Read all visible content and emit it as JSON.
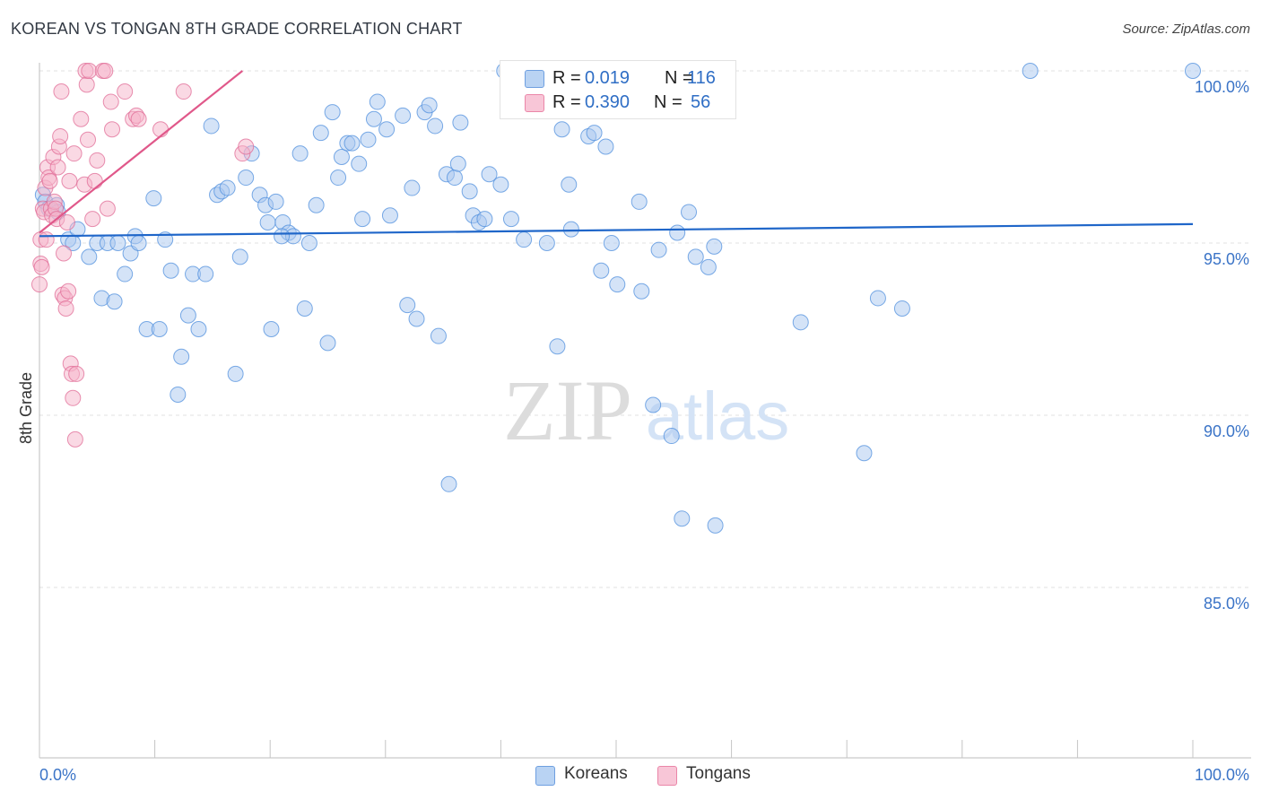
{
  "title": "KOREAN VS TONGAN 8TH GRADE CORRELATION CHART",
  "source": "Source: ZipAtlas.com",
  "watermark": {
    "zip": "ZIP",
    "atlas": "atlas"
  },
  "legend": {
    "rows": [
      {
        "r_label": "R =",
        "r_value": "0.019",
        "n_label": "N =",
        "n_value": "116",
        "color": "#a9c8f0"
      },
      {
        "r_label": "R =",
        "r_value": "0.390",
        "n_label": "N =",
        "n_value": "56",
        "color": "#f5b3c9"
      }
    ]
  },
  "bottom_legend": [
    {
      "label": "Koreans",
      "color": "#a9c8f0"
    },
    {
      "label": "Tongans",
      "color": "#f5b3c9"
    }
  ],
  "chart_data": {
    "type": "scatter",
    "title": "KOREAN VS TONGAN 8TH GRADE CORRELATION CHART",
    "xlabel": "",
    "ylabel": "8th Grade",
    "xlim": [
      0,
      100
    ],
    "ylim": [
      80.5,
      100.5
    ],
    "x_tick_labels": [
      "0.0%",
      "100.0%"
    ],
    "y_ticks": [
      85,
      90,
      95,
      100
    ],
    "y_tick_labels": [
      "85.0%",
      "90.0%",
      "95.0%",
      "100.0%"
    ],
    "grid": true,
    "series": [
      {
        "name": "Koreans",
        "color": "#4f8fdd",
        "fill": "#a9c8f0",
        "trend": {
          "x": [
            0,
            100
          ],
          "y": [
            95.2,
            95.55
          ],
          "color": "#1f66c9"
        },
        "points": [
          [
            0.3,
            96.4
          ],
          [
            0.5,
            96.2
          ],
          [
            0.8,
            96.0
          ],
          [
            1.5,
            96.1
          ],
          [
            1.6,
            95.9
          ],
          [
            2.5,
            95.1
          ],
          [
            2.9,
            95.0
          ],
          [
            3.3,
            95.4
          ],
          [
            4.3,
            94.6
          ],
          [
            5.0,
            95.0
          ],
          [
            5.4,
            93.4
          ],
          [
            5.9,
            95.0
          ],
          [
            6.5,
            93.3
          ],
          [
            6.8,
            95.0
          ],
          [
            7.4,
            94.1
          ],
          [
            7.9,
            94.7
          ],
          [
            8.3,
            95.2
          ],
          [
            8.6,
            95.0
          ],
          [
            9.3,
            92.5
          ],
          [
            9.9,
            96.3
          ],
          [
            10.4,
            92.5
          ],
          [
            10.9,
            95.1
          ],
          [
            11.4,
            94.2
          ],
          [
            12.0,
            90.6
          ],
          [
            12.3,
            91.7
          ],
          [
            12.9,
            92.9
          ],
          [
            13.3,
            94.1
          ],
          [
            13.8,
            92.5
          ],
          [
            14.4,
            94.1
          ],
          [
            14.9,
            98.4
          ],
          [
            15.4,
            96.4
          ],
          [
            15.8,
            96.5
          ],
          [
            16.3,
            96.6
          ],
          [
            17.0,
            91.2
          ],
          [
            17.4,
            94.6
          ],
          [
            17.9,
            96.9
          ],
          [
            18.4,
            97.6
          ],
          [
            19.1,
            96.4
          ],
          [
            19.6,
            96.1
          ],
          [
            19.8,
            95.6
          ],
          [
            20.1,
            92.5
          ],
          [
            21.1,
            95.6
          ],
          [
            21.6,
            95.3
          ],
          [
            22.0,
            95.2
          ],
          [
            22.6,
            97.6
          ],
          [
            23.0,
            93.1
          ],
          [
            23.4,
            95.0
          ],
          [
            24.0,
            96.1
          ],
          [
            24.4,
            98.2
          ],
          [
            25.0,
            92.1
          ],
          [
            25.4,
            98.8
          ],
          [
            25.9,
            96.9
          ],
          [
            26.2,
            97.5
          ],
          [
            26.7,
            97.9
          ],
          [
            27.1,
            97.9
          ],
          [
            27.7,
            97.3
          ],
          [
            28.0,
            95.7
          ],
          [
            28.5,
            98.0
          ],
          [
            29.0,
            98.6
          ],
          [
            29.3,
            99.1
          ],
          [
            30.1,
            98.3
          ],
          [
            30.4,
            95.8
          ],
          [
            31.5,
            98.7
          ],
          [
            31.9,
            93.2
          ],
          [
            32.3,
            96.6
          ],
          [
            32.7,
            92.8
          ],
          [
            33.4,
            98.8
          ],
          [
            33.8,
            99.0
          ],
          [
            34.3,
            98.4
          ],
          [
            34.6,
            92.3
          ],
          [
            35.3,
            97.0
          ],
          [
            36.0,
            96.9
          ],
          [
            36.3,
            97.3
          ],
          [
            36.5,
            98.5
          ],
          [
            37.3,
            96.5
          ],
          [
            37.6,
            95.8
          ],
          [
            38.1,
            95.6
          ],
          [
            38.6,
            95.7
          ],
          [
            39.0,
            97.0
          ],
          [
            40.0,
            96.7
          ],
          [
            40.9,
            95.7
          ],
          [
            42.0,
            95.1
          ],
          [
            44.0,
            95.0
          ],
          [
            44.9,
            92.0
          ],
          [
            45.3,
            98.3
          ],
          [
            45.9,
            96.7
          ],
          [
            46.1,
            95.4
          ],
          [
            47.6,
            98.1
          ],
          [
            48.1,
            98.2
          ],
          [
            48.7,
            94.2
          ],
          [
            49.1,
            97.8
          ],
          [
            49.6,
            95.0
          ],
          [
            50.1,
            93.8
          ],
          [
            52.0,
            96.2
          ],
          [
            52.2,
            93.6
          ],
          [
            53.2,
            90.3
          ],
          [
            53.7,
            94.8
          ],
          [
            54.8,
            89.4
          ],
          [
            55.3,
            95.3
          ],
          [
            56.3,
            95.9
          ],
          [
            56.9,
            94.6
          ],
          [
            58.0,
            94.3
          ],
          [
            58.5,
            94.9
          ],
          [
            66.0,
            92.7
          ],
          [
            71.5,
            88.9
          ],
          [
            72.7,
            93.4
          ],
          [
            74.8,
            93.1
          ],
          [
            85.9,
            100.0
          ],
          [
            100.0,
            100.0
          ],
          [
            35.5,
            88.0
          ],
          [
            55.7,
            87.0
          ],
          [
            58.6,
            86.8
          ],
          [
            21.0,
            95.2
          ],
          [
            20.5,
            96.2
          ],
          [
            47.0,
            100.0
          ],
          [
            40.3,
            100.0
          ]
        ]
      },
      {
        "name": "Tongans",
        "color": "#e06b95",
        "fill": "#f5b3c9",
        "trend": {
          "x": [
            0,
            17.6
          ],
          "y": [
            95.3,
            100.0
          ],
          "color": "#e0588a"
        },
        "points": [
          [
            0.0,
            93.8
          ],
          [
            0.1,
            94.4
          ],
          [
            0.1,
            95.1
          ],
          [
            0.2,
            94.3
          ],
          [
            0.3,
            96.0
          ],
          [
            0.4,
            95.9
          ],
          [
            0.5,
            96.6
          ],
          [
            0.6,
            95.1
          ],
          [
            0.7,
            97.2
          ],
          [
            0.8,
            96.9
          ],
          [
            0.9,
            96.8
          ],
          [
            1.0,
            96.0
          ],
          [
            1.1,
            95.8
          ],
          [
            1.2,
            97.5
          ],
          [
            1.3,
            96.2
          ],
          [
            1.4,
            96.0
          ],
          [
            1.5,
            95.7
          ],
          [
            1.6,
            97.2
          ],
          [
            1.7,
            97.8
          ],
          [
            1.8,
            98.1
          ],
          [
            1.9,
            99.4
          ],
          [
            2.0,
            93.5
          ],
          [
            2.1,
            94.7
          ],
          [
            2.2,
            93.4
          ],
          [
            2.3,
            93.1
          ],
          [
            2.4,
            95.6
          ],
          [
            2.5,
            93.6
          ],
          [
            2.6,
            96.8
          ],
          [
            2.7,
            91.5
          ],
          [
            2.8,
            91.2
          ],
          [
            2.9,
            90.5
          ],
          [
            3.0,
            97.6
          ],
          [
            3.1,
            89.3
          ],
          [
            3.2,
            91.2
          ],
          [
            3.6,
            98.6
          ],
          [
            3.9,
            96.7
          ],
          [
            4.0,
            100.0
          ],
          [
            4.1,
            99.6
          ],
          [
            4.2,
            98.0
          ],
          [
            4.3,
            100.0
          ],
          [
            4.6,
            95.7
          ],
          [
            4.8,
            96.8
          ],
          [
            5.0,
            97.4
          ],
          [
            5.5,
            100.0
          ],
          [
            5.7,
            100.0
          ],
          [
            5.9,
            96.0
          ],
          [
            6.3,
            98.3
          ],
          [
            6.2,
            99.1
          ],
          [
            7.4,
            99.4
          ],
          [
            8.1,
            98.6
          ],
          [
            8.4,
            98.7
          ],
          [
            8.6,
            98.6
          ],
          [
            10.5,
            98.3
          ],
          [
            12.5,
            99.4
          ],
          [
            17.6,
            97.6
          ],
          [
            17.9,
            97.8
          ]
        ]
      }
    ]
  }
}
